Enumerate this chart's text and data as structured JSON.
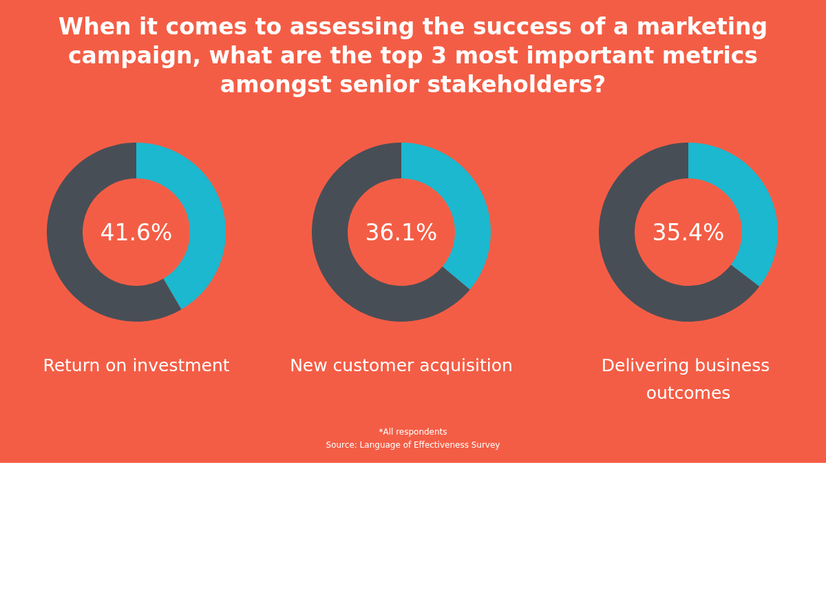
{
  "chart_data": [
    {
      "type": "other",
      "title": "When it comes to assessing the success of a marketing campaign, what are the top 3 most important metrics amongst senior stakeholders?"
    },
    {
      "type": "donut",
      "title": "Return on investment",
      "categories": [
        null,
        null
      ],
      "values": [
        41.6,
        58.4
      ],
      "colors": [
        "#1bb8cf",
        "#484e56"
      ],
      "value_labels": [
        "41.6%",
        null
      ]
    },
    {
      "type": "donut",
      "title": "New customer acquisition",
      "categories": [
        null,
        null
      ],
      "values": [
        36.1,
        63.9
      ],
      "colors": [
        "#1bb8cf",
        "#484e56"
      ],
      "value_labels": [
        "36.1%",
        null
      ]
    },
    {
      "type": "donut",
      "title": "Delivering business outcomes",
      "categories": [
        null,
        null
      ],
      "values": [
        35.4,
        64.6
      ],
      "colors": [
        "#1bb8cf",
        "#484e56"
      ],
      "value_labels": [
        "35.4%",
        null
      ]
    },
    {
      "type": "other",
      "annotations": [
        "*All respondents",
        "Source: Language of Effectiveness Survey"
      ]
    }
  ]
}
